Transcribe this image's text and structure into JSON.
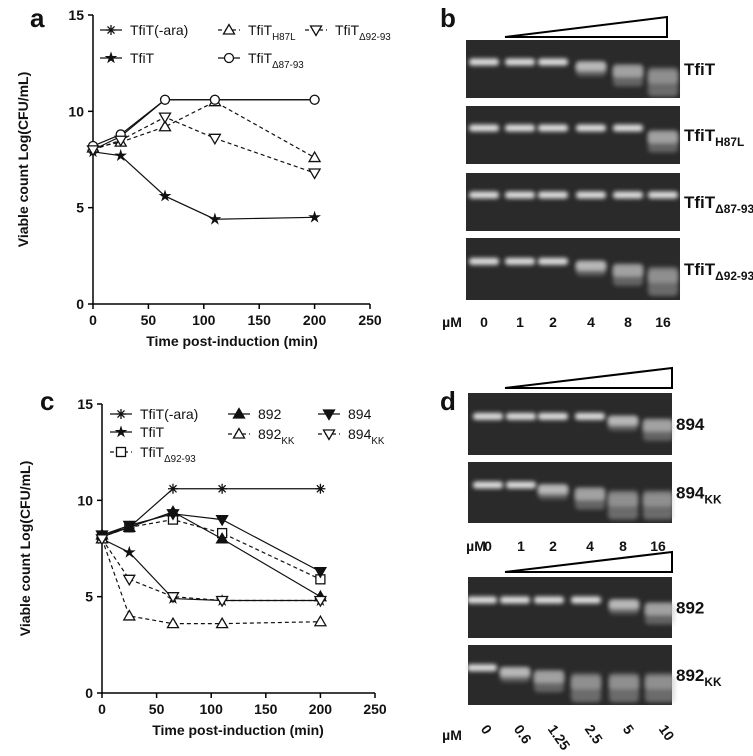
{
  "chart_data": [
    {
      "type": "line",
      "panel": "a",
      "x_label": "Time post-induction (min)",
      "y_label": "Viable count Log(CFU/mL)",
      "x": [
        0,
        25,
        65,
        110,
        200
      ],
      "xlim": [
        0,
        250
      ],
      "ylim": [
        0,
        15
      ],
      "xticks": [
        0,
        50,
        100,
        150,
        200,
        250
      ],
      "yticks": [
        0,
        5,
        10,
        15
      ],
      "series": [
        {
          "name": "TfiT(-ara)",
          "marker": "asterisk",
          "line_style": "solid",
          "color": "#111111",
          "values": [
            8.0,
            8.7,
            10.6,
            10.6,
            10.6
          ]
        },
        {
          "name": "TfiT",
          "marker": "star",
          "line_style": "solid",
          "color": "#111111",
          "values": [
            7.9,
            7.7,
            5.6,
            4.4,
            4.5
          ]
        },
        {
          "name": "TfiT",
          "name_sub": "H87L",
          "marker": "triangle-open",
          "line_style": "dashed",
          "color": "#111111",
          "values": [
            8.1,
            8.4,
            9.2,
            10.5,
            7.6
          ]
        },
        {
          "name": "TfiT",
          "name_sub": "Δ87-93",
          "marker": "circle-open",
          "line_style": "solid",
          "color": "#111111",
          "values": [
            8.2,
            8.8,
            10.6,
            10.6,
            10.6
          ]
        },
        {
          "name": "TfiT",
          "name_sub": "Δ92-93",
          "marker": "triangle-down-open",
          "line_style": "dashed",
          "color": "#111111",
          "values": [
            8.0,
            8.5,
            9.7,
            8.6,
            6.8
          ]
        }
      ]
    },
    {
      "type": "line",
      "panel": "c",
      "x_label": "Time post-induction (min)",
      "y_label": "Viable count Log(CFU/mL)",
      "x": [
        0,
        25,
        65,
        110,
        200
      ],
      "xlim": [
        0,
        250
      ],
      "ylim": [
        0,
        15
      ],
      "xticks": [
        0,
        50,
        100,
        150,
        200,
        250
      ],
      "yticks": [
        0,
        5,
        10,
        15
      ],
      "series": [
        {
          "name": "TfiT(-ara)",
          "marker": "asterisk",
          "line_style": "solid",
          "color": "#111111",
          "values": [
            8.1,
            8.6,
            10.6,
            10.6,
            10.6
          ]
        },
        {
          "name": "TfiT",
          "marker": "star",
          "line_style": "solid",
          "color": "#111111",
          "values": [
            8.0,
            7.3,
            4.9,
            4.8,
            4.8
          ]
        },
        {
          "name": "TfiT",
          "name_sub": "Δ92-93",
          "marker": "square-open",
          "line_style": "dashed",
          "color": "#111111",
          "values": [
            8.1,
            8.6,
            9.0,
            8.3,
            5.9
          ]
        },
        {
          "name": "892",
          "marker": "triangle",
          "line_style": "solid",
          "color": "#111111",
          "values": [
            8.2,
            8.6,
            9.4,
            8.0,
            5.0
          ]
        },
        {
          "name": "892",
          "name_sub": "KK",
          "marker": "triangle-open",
          "line_style": "dashed",
          "color": "#111111",
          "values": [
            8.0,
            4.0,
            3.6,
            3.6,
            3.7
          ]
        },
        {
          "name": "894",
          "marker": "triangle-down",
          "line_style": "solid",
          "color": "#111111",
          "values": [
            8.2,
            8.7,
            9.3,
            9.0,
            6.3
          ]
        },
        {
          "name": "894",
          "name_sub": "KK",
          "marker": "triangle-down-open",
          "line_style": "dashed",
          "color": "#111111",
          "values": [
            8.0,
            5.9,
            5.0,
            4.8,
            4.8
          ]
        }
      ]
    }
  ],
  "gels": [
    {
      "panel": "b",
      "sections": [
        {
          "rows": [
            {
              "label": "TfiT"
            },
            {
              "label": "TfiT",
              "sub": "H87L"
            },
            {
              "label": "TfiT",
              "sub": "Δ87-93"
            },
            {
              "label": "TfiT",
              "sub": "Δ92-93"
            }
          ],
          "unit": "µM",
          "concentrations": [
            0,
            1,
            2,
            4,
            8,
            16
          ]
        }
      ]
    },
    {
      "panel": "d",
      "sections": [
        {
          "rows": [
            {
              "label": "894"
            },
            {
              "label": "894",
              "sub": "KK"
            }
          ],
          "unit": "µM",
          "concentrations": [
            0,
            1,
            2,
            4,
            8,
            16
          ]
        },
        {
          "rows": [
            {
              "label": "892"
            },
            {
              "label": "892",
              "sub": "KK"
            }
          ],
          "unit": "µM",
          "concentrations": [
            0,
            0.6,
            1.25,
            2.5,
            5,
            10
          ]
        }
      ]
    }
  ]
}
